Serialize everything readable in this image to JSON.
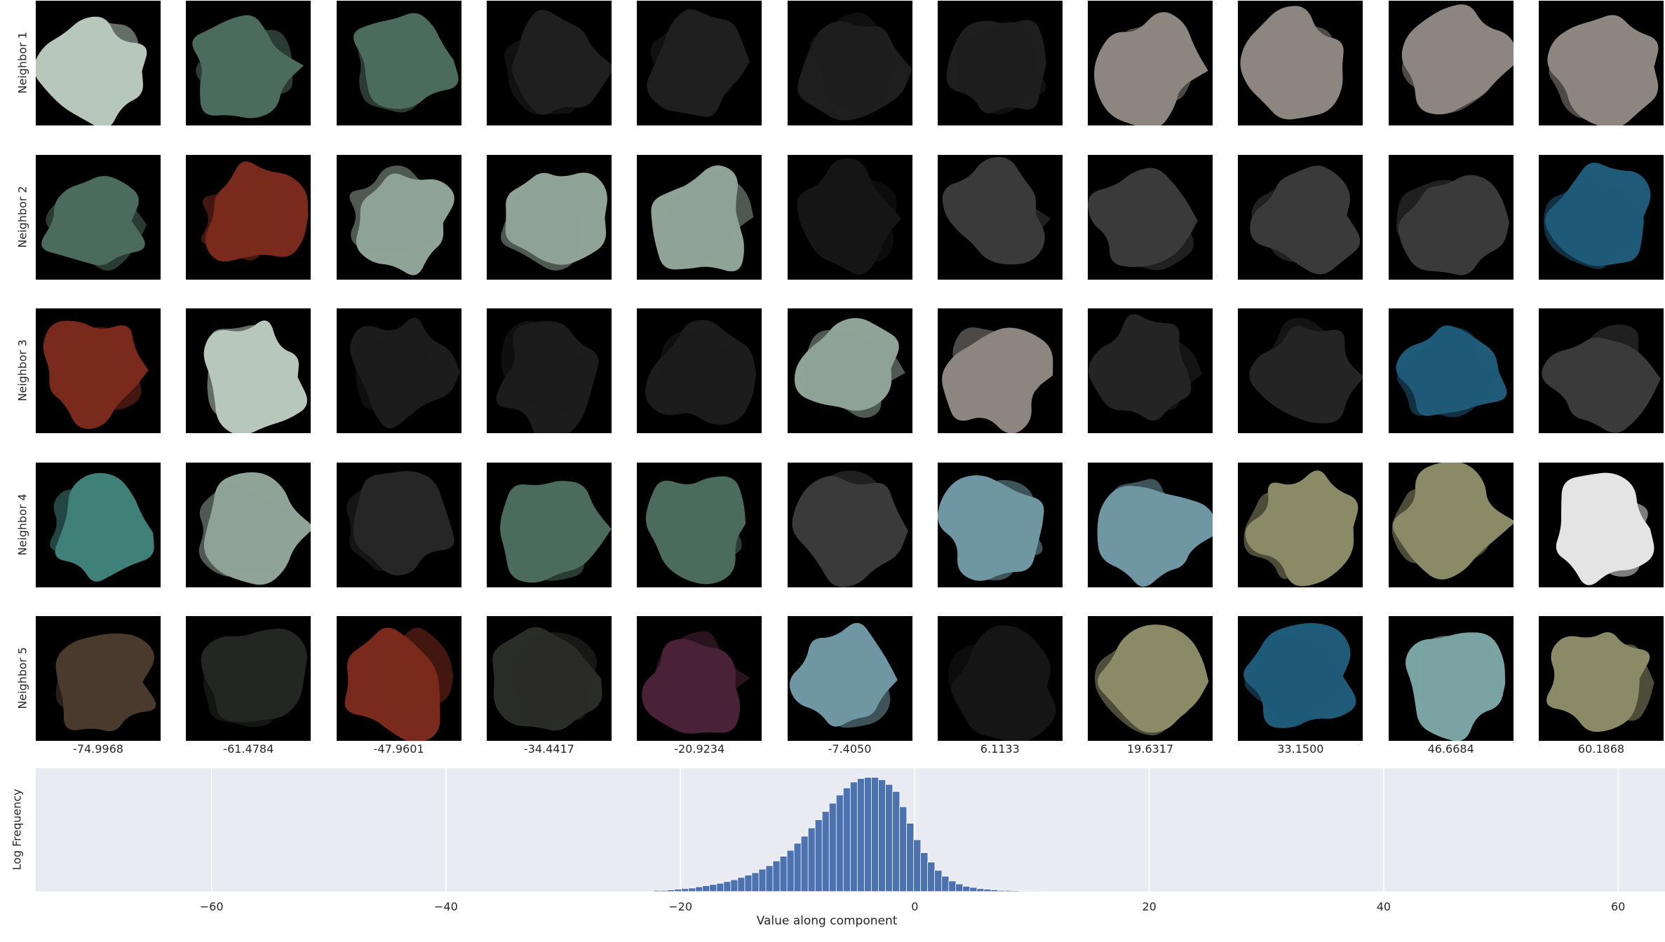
{
  "grid": {
    "row_labels": [
      "Neighbor 1",
      "Neighbor 2",
      "Neighbor 3",
      "Neighbor 4",
      "Neighbor 5"
    ],
    "column_values": [
      "-74.9968",
      "-61.4784",
      "-47.9601",
      "-34.4417",
      "-20.9234",
      "-7.4050",
      "6.1133",
      "19.6317",
      "33.1500",
      "46.6684",
      "60.1868"
    ],
    "tile_colors": [
      [
        "#b8c7bb",
        "#4b6b5e",
        "#4b6b5e",
        "#1f1f1f",
        "#1f1f1f",
        "#1e1e1e",
        "#1e1e1e",
        "#8c8580",
        "#8c8580",
        "#8c8580",
        "#8c8580"
      ],
      [
        "#4b6b5e",
        "#7a2a1c",
        "#8fa397",
        "#8fa397",
        "#8fa397",
        "#151515",
        "#3a3a3a",
        "#3a3a3a",
        "#3a3a3a",
        "#3a3a3a",
        "#1f5a78"
      ],
      [
        "#7a2a1c",
        "#b8c7bb",
        "#1c1c1c",
        "#1c1c1c",
        "#1c1c1c",
        "#8fa397",
        "#8c8580",
        "#242424",
        "#242424",
        "#1f5a78",
        "#3a3a3a"
      ],
      [
        "#3f8078",
        "#8fa397",
        "#262626",
        "#4b6b5e",
        "#4b6b5e",
        "#3a3a3a",
        "#6f97a3",
        "#6f97a3",
        "#8a8a66",
        "#8a8a66",
        "#e4e4e4"
      ],
      [
        "#4a3a2e",
        "#242624",
        "#7a2a1c",
        "#2a2c28",
        "#4a2238",
        "#6f97a3",
        "#151515",
        "#8a8a66",
        "#1f5a78",
        "#7aa3a3",
        "#8a8a66"
      ]
    ]
  },
  "chart_data": {
    "type": "bar",
    "xlabel": "Value along component",
    "ylabel": "Log Frequency",
    "xlim": [
      -74.9968,
      64.0
    ],
    "x_ticks": [
      -60,
      -40,
      -20,
      0,
      20,
      40,
      60
    ],
    "x_tick_labels": [
      "−60",
      "−40",
      "−20",
      "0",
      "20",
      "40",
      "60"
    ],
    "grid": true,
    "background": "#eaeaf2",
    "bar_color": "#4c72b0",
    "bin_width": 0.62,
    "x": [
      -22.0,
      -21.4,
      -20.8,
      -20.2,
      -19.6,
      -19.0,
      -18.4,
      -17.8,
      -17.2,
      -16.6,
      -16.0,
      -15.4,
      -14.8,
      -14.2,
      -13.6,
      -13.0,
      -12.4,
      -11.8,
      -11.2,
      -10.6,
      -10.0,
      -9.4,
      -8.8,
      -8.2,
      -7.6,
      -7.0,
      -6.4,
      -5.8,
      -5.2,
      -4.6,
      -4.0,
      -3.4,
      -2.8,
      -2.2,
      -1.6,
      -1.0,
      -0.4,
      0.2,
      0.8,
      1.4,
      2.0,
      2.6,
      3.2,
      3.8,
      4.4,
      5.0,
      5.6,
      6.2,
      6.8,
      7.4,
      8.0,
      8.6,
      9.2,
      9.8,
      10.4
    ],
    "values": [
      0.01,
      0.01,
      0.015,
      0.02,
      0.025,
      0.03,
      0.04,
      0.05,
      0.06,
      0.07,
      0.085,
      0.1,
      0.12,
      0.14,
      0.16,
      0.19,
      0.22,
      0.26,
      0.3,
      0.35,
      0.41,
      0.47,
      0.54,
      0.61,
      0.68,
      0.75,
      0.82,
      0.88,
      0.93,
      0.96,
      0.97,
      0.97,
      0.95,
      0.91,
      0.85,
      0.72,
      0.58,
      0.44,
      0.33,
      0.25,
      0.18,
      0.13,
      0.09,
      0.065,
      0.045,
      0.035,
      0.025,
      0.02,
      0.015,
      0.01,
      0.01,
      0.008,
      0.006,
      0.005,
      0.004
    ]
  }
}
